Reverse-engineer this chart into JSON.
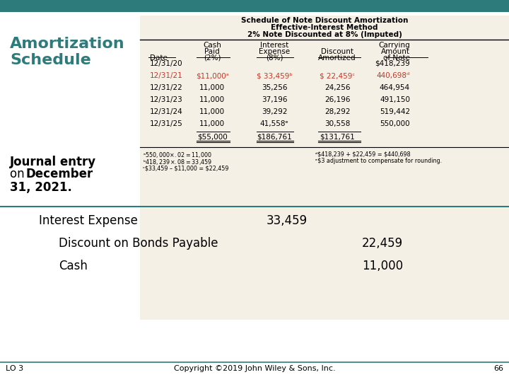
{
  "bg_color": "#ffffff",
  "header_bg": "#2e7b7b",
  "table_bg": "#f5f0e6",
  "title_color": "#2e7b7b",
  "schedule_title_line1": "Schedule of Note Discount Amortization",
  "schedule_title_line2": "Effective-Interest Method",
  "schedule_title_line3": "2% Note Discounted at 8% (Imputed)",
  "col_headers_top": [
    "",
    "Cash",
    "Interest",
    "",
    "Carrying"
  ],
  "col_headers_mid": [
    "",
    "Paid",
    "Expense",
    "Discount",
    "Amount"
  ],
  "col_headers_bot": [
    "Date",
    "(2%)",
    "(8%)",
    "Amortized",
    "of Note"
  ],
  "rows": [
    [
      "12/31/20",
      "",
      "",
      "",
      "$418,239"
    ],
    [
      "12/31/21",
      "$11,000ᵃ",
      "$ 33,459ᵇ",
      "$ 22,459ᶜ",
      "440,698ᵈ"
    ],
    [
      "12/31/22",
      "11,000",
      "35,256",
      "24,256",
      "464,954"
    ],
    [
      "12/31/23",
      "11,000",
      "37,196",
      "26,196",
      "491,150"
    ],
    [
      "12/31/24",
      "11,000",
      "39,292",
      "28,292",
      "519,442"
    ],
    [
      "12/31/25",
      "11,000",
      "41,558ᵉ",
      "30,558",
      "550,000"
    ]
  ],
  "totals_row": [
    "",
    "$55,000",
    "$186,761",
    "$131,761",
    ""
  ],
  "highlight_row": 1,
  "highlight_color": "#c0392b",
  "footnotes_left": [
    "ᵃ$550,000 × .02 = $11,000",
    "ᵇ$418,239 × .08 = $33,459",
    "ᶜ$33,459 – $11,000 = $22,459"
  ],
  "footnotes_right": [
    "ᵈ$418,239 + $22,459 = $440,698",
    "ᵉ$3 adjustment to compensate for rounding."
  ],
  "journal_entries": [
    {
      "account": "Interest Expense",
      "debit": "33,459",
      "credit": "",
      "indent": 0
    },
    {
      "account": "Discount on Bonds Payable",
      "debit": "",
      "credit": "22,459",
      "indent": 1
    },
    {
      "account": "Cash",
      "debit": "",
      "credit": "11,000",
      "indent": 1
    }
  ],
  "footer_lo": "LO 3",
  "footer_copy": "Copyright ©2019 John Wiley & Sons, Inc.",
  "footer_page": "66",
  "teal_color": "#2e7b7b"
}
